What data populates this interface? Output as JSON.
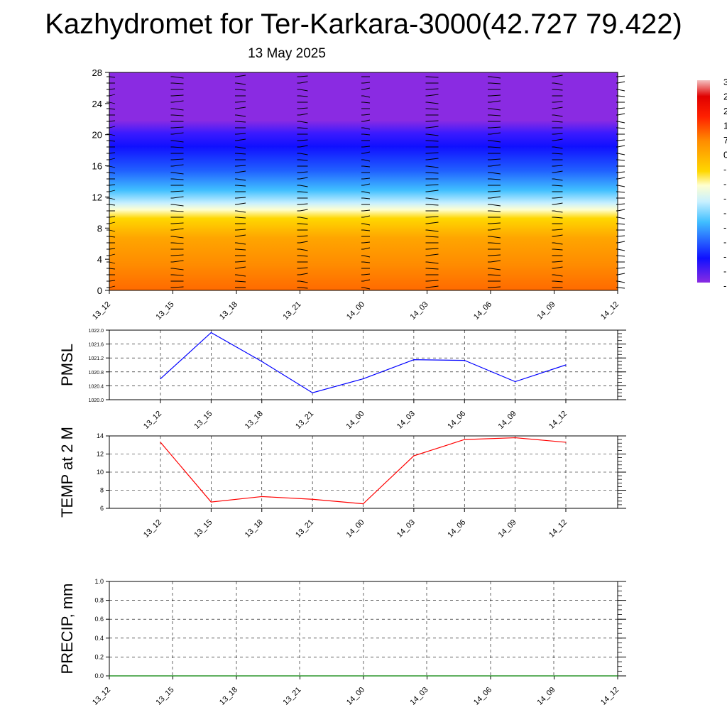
{
  "header": {
    "title": "Kazhydromet for Ter-Karkara-3000(42.727 79.422)",
    "subtitle": "13 May 2025"
  },
  "chart_data": [
    {
      "type": "heatmap",
      "description_kind": "time-height cross-section with wind barbs",
      "x_ticks": [
        "13_12",
        "13_15",
        "13_18",
        "13_21",
        "14_00",
        "14_03",
        "14_06",
        "14_09",
        "14_12"
      ],
      "y_ticks": [
        "0",
        "4",
        "8",
        "12",
        "16",
        "20",
        "24",
        "28"
      ],
      "ylim": [
        0,
        28
      ],
      "colorbar_labels_partial": [
        "3",
        "2",
        "2",
        "1",
        "7",
        "0",
        "-",
        "-",
        "-",
        "-",
        "-",
        "-",
        "-",
        "-",
        "-"
      ],
      "colors": {
        "bottom": "#ff6a00",
        "mid_low": "#ffd700",
        "near_zero": "#ffffd0",
        "mid_high": "#40bfff",
        "high": "#1010ff",
        "top": "#8a2be2"
      },
      "grid": false
    },
    {
      "type": "line",
      "ylabel": "PMSL",
      "categories": [
        "13_12",
        "13_15",
        "13_18",
        "13_21",
        "14_00",
        "14_03",
        "14_06",
        "14_09",
        "14_12"
      ],
      "values": [
        1020.6,
        1021.93,
        1021.1,
        1020.2,
        1020.6,
        1021.15,
        1021.13,
        1020.52,
        1021.0
      ],
      "ylim": [
        1020.0,
        1022.0
      ],
      "y_ticks": [
        "1020.0",
        "1020.4",
        "1020.8",
        "1021.2",
        "1021.6",
        "1022.0"
      ],
      "color": "#0000ff",
      "grid": true
    },
    {
      "type": "line",
      "ylabel": "TEMP at 2 M",
      "categories": [
        "13_12",
        "13_15",
        "13_18",
        "13_21",
        "14_00",
        "14_03",
        "14_06",
        "14_09",
        "14_12"
      ],
      "values": [
        13.3,
        6.7,
        7.3,
        7.0,
        6.5,
        11.8,
        13.6,
        13.8,
        13.3
      ],
      "ylim": [
        6,
        14
      ],
      "y_ticks": [
        "6",
        "8",
        "10",
        "12",
        "14"
      ],
      "color": "#ff0000",
      "grid": true
    },
    {
      "type": "line",
      "ylabel": "PRECIP, mm",
      "categories": [
        "13_12",
        "13_15",
        "13_18",
        "13_21",
        "14_00",
        "14_03",
        "14_06",
        "14_09",
        "14_12"
      ],
      "values": [
        0,
        0,
        0,
        0,
        0,
        0,
        0,
        0,
        0
      ],
      "ylim": [
        0.0,
        1.0
      ],
      "y_ticks": [
        "0.0",
        "0.2",
        "0.4",
        "0.6",
        "0.8",
        "1.0"
      ],
      "color": "#008000",
      "grid": true
    }
  ]
}
